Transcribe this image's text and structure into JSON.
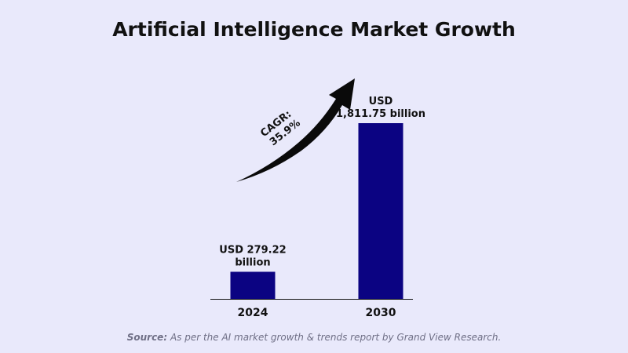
{
  "chart_data": {
    "type": "bar",
    "title": "Artificial Intelligence Market Growth",
    "categories": [
      "2024",
      "2030"
    ],
    "values": [
      279.22,
      1811.75
    ],
    "data_labels": [
      [
        "USD 279.22",
        "billion"
      ],
      [
        "USD",
        "1,811.75 billion"
      ]
    ],
    "ylim": [
      0,
      2000
    ],
    "grid": false,
    "bar_color": "#0b0382",
    "annotation": {
      "lines": [
        "CAGR:",
        "35.9%"
      ],
      "arrow": "curved-up"
    },
    "source": {
      "lead": "Source:",
      "text": " As per the AI market growth & trends report by Grand View Research."
    }
  },
  "colors": {
    "background": "#e9e9fb",
    "bar": "#0b0382",
    "text": "#111111",
    "source": "#6f6f86"
  }
}
